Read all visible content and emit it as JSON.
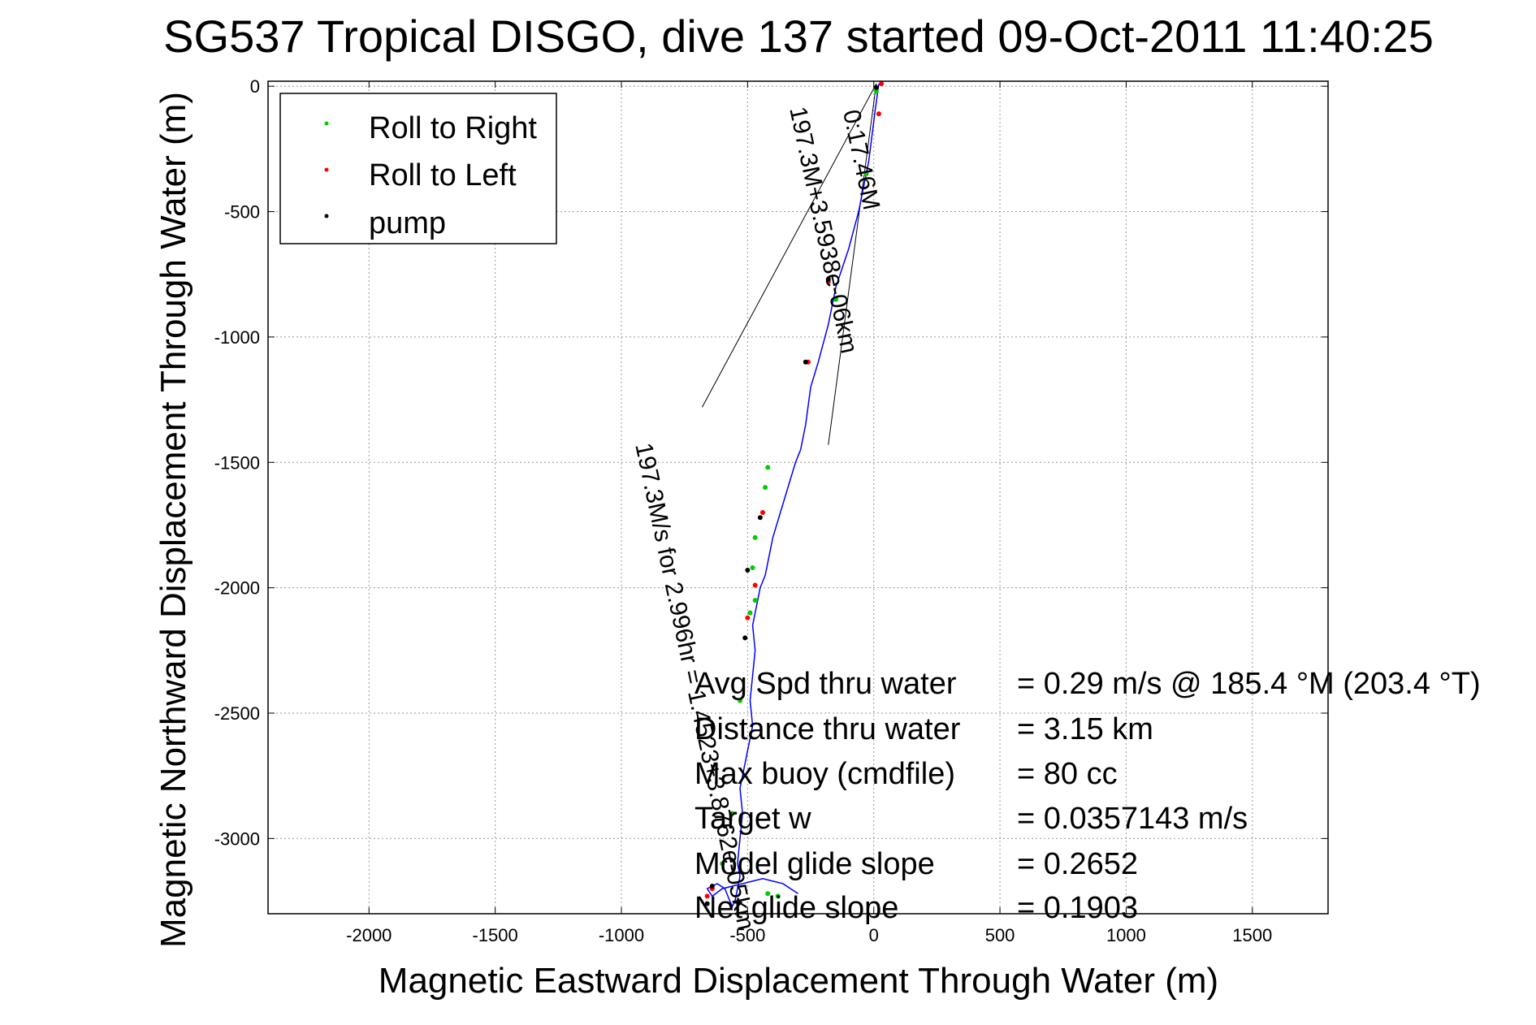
{
  "chart_data": {
    "type": "line",
    "title": "SG537 Tropical DISGO, dive 137 started 09-Oct-2011 11:40:25",
    "xlabel": "Magnetic Eastward Displacement Through Water (m)",
    "ylabel": "Magnetic Northward Displacement Through Water (m)",
    "xlim": [
      -2400,
      1800
    ],
    "ylim": [
      -3300,
      20
    ],
    "xticks": [
      -2000,
      -1500,
      -1000,
      -500,
      0,
      500,
      1000,
      1500
    ],
    "yticks": [
      0,
      -500,
      -1000,
      -1500,
      -2000,
      -2500,
      -3000
    ],
    "grid": true,
    "legend_position": "top-left",
    "legend": [
      {
        "label": "Roll to Right",
        "color": "#00cc00"
      },
      {
        "label": "Roll to Left",
        "color": "#ff0000"
      },
      {
        "label": "pump",
        "color": "#000000"
      }
    ],
    "series": [
      {
        "name": "track",
        "color": "#0000ff",
        "x": [
          20,
          5,
          -20,
          -60,
          -100,
          -150,
          -180,
          -220,
          -250,
          -270,
          -290,
          -310,
          -340,
          -370,
          -400,
          -410,
          -430,
          -450,
          -460,
          -470,
          -480,
          -470,
          -480,
          -490,
          -480,
          -500,
          -510,
          -530,
          -520,
          -530,
          -540,
          -530,
          -540,
          -550,
          -560,
          -570,
          -590,
          -620,
          -660,
          -640,
          -600,
          -560,
          -520,
          -480,
          -440,
          -400,
          -360,
          -330,
          -300
        ],
        "y": [
          10,
          -100,
          -300,
          -500,
          -650,
          -800,
          -950,
          -1100,
          -1200,
          -1350,
          -1450,
          -1500,
          -1600,
          -1700,
          -1800,
          -1850,
          -1950,
          -2000,
          -2050,
          -2100,
          -2150,
          -2250,
          -2350,
          -2450,
          -2550,
          -2650,
          -2700,
          -2800,
          -2900,
          -3000,
          -3100,
          -3150,
          -3200,
          -3250,
          -3270,
          -3250,
          -3200,
          -3180,
          -3200,
          -3230,
          -3200,
          -3190,
          -3180,
          -3170,
          -3160,
          -3170,
          -3180,
          -3200,
          -3220
        ]
      }
    ],
    "roll_right_points": [
      [
        10,
        -20
      ],
      [
        -30,
        -350
      ],
      [
        -150,
        -850
      ],
      [
        -420,
        -1520
      ],
      [
        -430,
        -1600
      ],
      [
        -470,
        -1800
      ],
      [
        -480,
        -1920
      ],
      [
        -470,
        -2050
      ],
      [
        -490,
        -2100
      ],
      [
        -530,
        -2450
      ],
      [
        -560,
        -2900
      ],
      [
        -600,
        -3100
      ],
      [
        -420,
        -3220
      ],
      [
        -380,
        -3230
      ]
    ],
    "roll_left_points": [
      [
        30,
        10
      ],
      [
        20,
        -110
      ],
      [
        -180,
        -780
      ],
      [
        -260,
        -1100
      ],
      [
        -440,
        -1700
      ],
      [
        -470,
        -1990
      ],
      [
        -500,
        -2120
      ],
      [
        -660,
        -3230
      ],
      [
        -640,
        -3200
      ]
    ],
    "pump_points": [
      [
        10,
        -5
      ],
      [
        -180,
        -770
      ],
      [
        -270,
        -1100
      ],
      [
        -450,
        -1720
      ],
      [
        -500,
        -1930
      ],
      [
        -510,
        -2200
      ],
      [
        -640,
        -3190
      ],
      [
        -660,
        -3260
      ]
    ],
    "bearing_lines": [
      {
        "from": [
          10,
          10
        ],
        "to": [
          -680,
          -1280
        ]
      },
      {
        "from": [
          10,
          10
        ],
        "to": [
          -180,
          -1430
        ]
      }
    ],
    "annotations": [
      {
        "text": "197.3M+3.5938e-06km",
        "rotation": 78
      },
      {
        "text": "0:17.46M",
        "rotation": 78
      },
      {
        "text": "197.3M/s for 2.996hr = 1.4523+3.8762e-05km",
        "rotation": 78
      }
    ],
    "stats": [
      {
        "label": "Avg Spd thru water",
        "value": "=  0.29 m/s @ 185.4 °M (203.4 °T)"
      },
      {
        "label": "Distance thru water",
        "value": "=  3.15 km"
      },
      {
        "label": "Max buoy (cmdfile)",
        "value": "= 80 cc"
      },
      {
        "label": "Target w",
        "value": "= 0.0357143 m/s"
      },
      {
        "label": "Model glide slope",
        "value": "= 0.2652"
      },
      {
        "label": "Net glide slope",
        "value": "= 0.1903"
      }
    ]
  }
}
